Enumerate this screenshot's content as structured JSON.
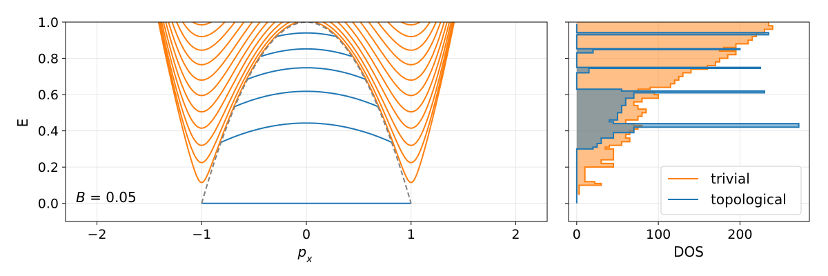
{
  "chart_data": [
    {
      "type": "line",
      "title": "",
      "xlabel": "p",
      "xlabel_subscript": "x",
      "ylabel": "E",
      "xlim": [
        -2.3,
        2.3
      ],
      "ylim": [
        -0.1,
        1.0
      ],
      "x_ticks": [
        -2,
        -1,
        0,
        1,
        2
      ],
      "x_tick_labels": [
        "−2",
        "−1",
        "0",
        "1",
        "2"
      ],
      "y_ticks": [
        0.0,
        0.2,
        0.4,
        0.6,
        0.8,
        1.0
      ],
      "y_tick_labels": [
        "0.0",
        "0.2",
        "0.4",
        "0.6",
        "0.8",
        "1.0"
      ],
      "grid": true,
      "annotation": {
        "label": "B",
        "equals": " = ",
        "value": "0.05"
      },
      "trivial_bands": {
        "color": "#ff7f0e",
        "model": "E = sqrt((p^2 - 1)^2 + m^2)",
        "m_values": [
          0.115,
          0.225,
          0.32,
          0.415,
          0.505,
          0.595,
          0.68,
          0.765,
          0.845,
          0.92,
          0.985
        ]
      },
      "topological_bands": {
        "color": "#1f77b4",
        "model": "E = Ec - a * p^2, clipped inside the dashed parabola",
        "Ec_values": [
          0.0,
          0.443,
          0.618,
          0.748,
          0.852,
          0.94
        ],
        "a_values": [
          0.0,
          0.16,
          0.18,
          0.2,
          0.22,
          0.24
        ]
      },
      "boundary": {
        "style": "dashed",
        "color": "#808080",
        "model": "E = 1 - p^2",
        "x_range": [
          -1,
          1
        ]
      }
    },
    {
      "type": "area",
      "xlabel": "DOS",
      "ylabel": "",
      "xlim": [
        -10,
        285
      ],
      "ylim": [
        -0.1,
        1.0
      ],
      "x_ticks": [
        0,
        100,
        200
      ],
      "x_tick_labels": [
        "0",
        "100",
        "200"
      ],
      "grid": true,
      "legend_position": "lower-right",
      "series": [
        {
          "name": "trivial",
          "color": "#ff7f0e",
          "E": [
            0.05,
            0.1,
            0.11,
            0.12,
            0.13,
            0.2,
            0.22,
            0.24,
            0.3,
            0.31,
            0.32,
            0.34,
            0.36,
            0.38,
            0.4,
            0.41,
            0.42,
            0.43,
            0.44,
            0.46,
            0.48,
            0.5,
            0.52,
            0.54,
            0.56,
            0.58,
            0.6,
            0.62,
            0.63,
            0.64,
            0.66,
            0.68,
            0.7,
            0.72,
            0.74,
            0.76,
            0.78,
            0.8,
            0.82,
            0.84,
            0.85,
            0.86,
            0.88,
            0.9,
            0.92,
            0.94,
            0.96,
            0.98,
            1.0
          ],
          "DOS": [
            2,
            3,
            30,
            22,
            10,
            10,
            45,
            30,
            45,
            35,
            40,
            55,
            65,
            60,
            65,
            70,
            75,
            80,
            70,
            60,
            75,
            80,
            85,
            75,
            70,
            80,
            100,
            95,
            75,
            90,
            115,
            120,
            125,
            130,
            140,
            160,
            170,
            175,
            185,
            195,
            175,
            180,
            195,
            210,
            215,
            220,
            230,
            240,
            235
          ]
        },
        {
          "name": "topological",
          "color": "#1f77b4",
          "E": [
            0.0,
            0.3,
            0.31,
            0.33,
            0.36,
            0.39,
            0.42,
            0.44,
            0.45,
            0.46,
            0.5,
            0.54,
            0.58,
            0.61,
            0.62,
            0.63,
            0.64,
            0.68,
            0.72,
            0.745,
            0.75,
            0.755,
            0.79,
            0.83,
            0.848,
            0.853,
            0.86,
            0.9,
            0.93,
            0.942,
            0.95,
            0.99
          ],
          "DOS": [
            0,
            0,
            20,
            25,
            30,
            45,
            70,
            272,
            45,
            40,
            50,
            55,
            60,
            70,
            230,
            55,
            0,
            0,
            0,
            15,
            225,
            0,
            0,
            0,
            20,
            200,
            0,
            0,
            0,
            235,
            0,
            0
          ]
        }
      ]
    }
  ]
}
